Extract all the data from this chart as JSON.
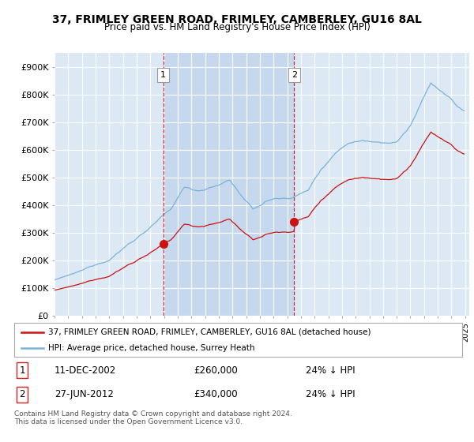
{
  "title": "37, FRIMLEY GREEN ROAD, FRIMLEY, CAMBERLEY, GU16 8AL",
  "subtitle": "Price paid vs. HM Land Registry's House Price Index (HPI)",
  "background_color": "#ffffff",
  "plot_bg_color": "#dce9f5",
  "shade_color": "#c5d8ee",
  "grid_color": "#ffffff",
  "hpi_color": "#7ab3d8",
  "price_color": "#cc1111",
  "vline_color": "#cc1111",
  "ylim": [
    0,
    950000
  ],
  "yticks": [
    0,
    100000,
    200000,
    300000,
    400000,
    500000,
    600000,
    700000,
    800000,
    900000
  ],
  "ytick_labels": [
    "£0",
    "£100K",
    "£200K",
    "£300K",
    "£400K",
    "£500K",
    "£600K",
    "£700K",
    "£800K",
    "£900K"
  ],
  "purchase1_date": 2002.95,
  "purchase1_price": 260000,
  "purchase1_label": "1",
  "purchase2_date": 2012.5,
  "purchase2_price": 340000,
  "purchase2_label": "2",
  "legend_line1": "37, FRIMLEY GREEN ROAD, FRIMLEY, CAMBERLEY, GU16 8AL (detached house)",
  "legend_line2": "HPI: Average price, detached house, Surrey Heath",
  "table_row1_num": "1",
  "table_row1_date": "11-DEC-2002",
  "table_row1_price": "£260,000",
  "table_row1_hpi": "24% ↓ HPI",
  "table_row2_num": "2",
  "table_row2_date": "27-JUN-2012",
  "table_row2_price": "£340,000",
  "table_row2_hpi": "24% ↓ HPI",
  "footer": "Contains HM Land Registry data © Crown copyright and database right 2024.\nThis data is licensed under the Open Government Licence v3.0.",
  "xmin": 1995.0,
  "xmax": 2025.3
}
